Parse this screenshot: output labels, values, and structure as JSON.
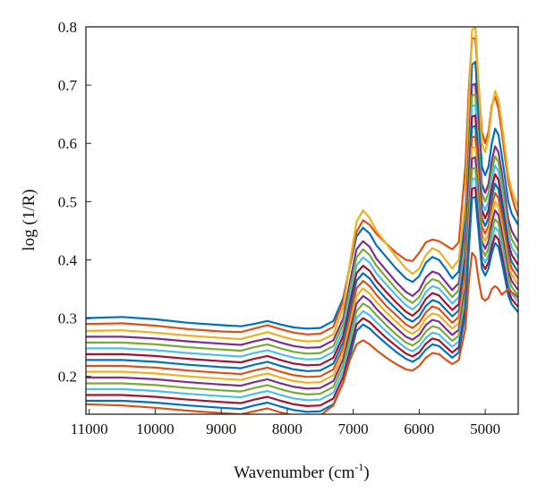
{
  "chart_data": {
    "type": "line",
    "xlabel_main": "Wavenumber (cm",
    "xlabel_sup": "-1",
    "xlabel_close": ")",
    "ylabel": "log (1/R)",
    "xlim": [
      11050,
      4500
    ],
    "ylim": [
      0.135,
      0.8
    ],
    "x_reversed": true,
    "grid": false,
    "legend": "none",
    "x_ticks": [
      {
        "value": 11000,
        "label": "11000"
      },
      {
        "value": 10000,
        "label": "10000"
      },
      {
        "value": 9000,
        "label": "9000"
      },
      {
        "value": 8000,
        "label": "8000"
      },
      {
        "value": 7000,
        "label": "7000"
      },
      {
        "value": 6000,
        "label": "6000"
      },
      {
        "value": 5000,
        "label": "5000"
      }
    ],
    "y_ticks": [
      {
        "value": 0.2,
        "label": "0.2"
      },
      {
        "value": 0.3,
        "label": "0.3"
      },
      {
        "value": 0.4,
        "label": "0.4"
      },
      {
        "value": 0.5,
        "label": "0.5"
      },
      {
        "value": 0.6,
        "label": "0.6"
      },
      {
        "value": 0.7,
        "label": "0.7"
      },
      {
        "value": 0.8,
        "label": "0.8"
      }
    ],
    "palette": [
      "#0072BD",
      "#D95319",
      "#EDB120",
      "#7E2F8E",
      "#77AC30",
      "#4DBEEE",
      "#A2142F"
    ],
    "x": [
      11050,
      10500,
      10000,
      9500,
      9000,
      8700,
      8500,
      8300,
      8100,
      7900,
      7700,
      7500,
      7300,
      7150,
      7050,
      6950,
      6850,
      6750,
      6650,
      6500,
      6350,
      6200,
      6100,
      6000,
      5900,
      5800,
      5700,
      5600,
      5500,
      5400,
      5300,
      5250,
      5200,
      5150,
      5100,
      5050,
      5000,
      4950,
      4900,
      4850,
      4800,
      4750,
      4700,
      4650,
      4600,
      4550,
      4500
    ],
    "series": [
      {
        "values": [
          0.3,
          0.302,
          0.298,
          0.292,
          0.288,
          0.286,
          0.29,
          0.295,
          0.289,
          0.284,
          0.282,
          0.283,
          0.295,
          0.335,
          0.39,
          0.44,
          0.455,
          0.445,
          0.425,
          0.405,
          0.385,
          0.368,
          0.362,
          0.372,
          0.395,
          0.405,
          0.4,
          0.385,
          0.368,
          0.38,
          0.47,
          0.61,
          0.735,
          0.74,
          0.65,
          0.56,
          0.545,
          0.56,
          0.6,
          0.625,
          0.615,
          0.58,
          0.54,
          0.5,
          0.48,
          0.47,
          0.46
        ]
      },
      {
        "values": [
          0.29,
          0.291,
          0.287,
          0.281,
          0.277,
          0.276,
          0.282,
          0.288,
          0.281,
          0.275,
          0.272,
          0.273,
          0.285,
          0.33,
          0.392,
          0.448,
          0.468,
          0.46,
          0.445,
          0.428,
          0.412,
          0.4,
          0.398,
          0.412,
          0.43,
          0.435,
          0.432,
          0.425,
          0.418,
          0.43,
          0.56,
          0.69,
          0.78,
          0.78,
          0.7,
          0.62,
          0.6,
          0.62,
          0.665,
          0.68,
          0.66,
          0.62,
          0.575,
          0.535,
          0.51,
          0.49,
          0.475
        ]
      },
      {
        "values": [
          0.278,
          0.279,
          0.275,
          0.27,
          0.266,
          0.264,
          0.27,
          0.276,
          0.269,
          0.263,
          0.26,
          0.261,
          0.272,
          0.318,
          0.395,
          0.465,
          0.485,
          0.472,
          0.45,
          0.428,
          0.405,
          0.385,
          0.376,
          0.385,
          0.408,
          0.42,
          0.415,
          0.4,
          0.385,
          0.4,
          0.5,
          0.66,
          0.795,
          0.8,
          0.7,
          0.6,
          0.585,
          0.61,
          0.66,
          0.69,
          0.675,
          0.635,
          0.59,
          0.545,
          0.52,
          0.505,
          0.49
        ]
      },
      {
        "values": [
          0.268,
          0.268,
          0.265,
          0.26,
          0.256,
          0.254,
          0.26,
          0.265,
          0.258,
          0.252,
          0.249,
          0.25,
          0.262,
          0.3,
          0.362,
          0.418,
          0.432,
          0.422,
          0.402,
          0.382,
          0.362,
          0.345,
          0.338,
          0.348,
          0.37,
          0.38,
          0.376,
          0.362,
          0.348,
          0.36,
          0.45,
          0.59,
          0.7,
          0.702,
          0.615,
          0.53,
          0.515,
          0.53,
          0.57,
          0.595,
          0.585,
          0.55,
          0.51,
          0.47,
          0.45,
          0.44,
          0.43
        ]
      },
      {
        "values": [
          0.258,
          0.258,
          0.255,
          0.25,
          0.246,
          0.244,
          0.25,
          0.255,
          0.248,
          0.242,
          0.239,
          0.24,
          0.252,
          0.29,
          0.35,
          0.404,
          0.418,
          0.408,
          0.39,
          0.37,
          0.35,
          0.333,
          0.326,
          0.336,
          0.357,
          0.367,
          0.363,
          0.35,
          0.336,
          0.348,
          0.435,
          0.572,
          0.682,
          0.684,
          0.598,
          0.515,
          0.5,
          0.515,
          0.553,
          0.578,
          0.568,
          0.534,
          0.495,
          0.456,
          0.436,
          0.426,
          0.416
        ]
      },
      {
        "values": [
          0.248,
          0.248,
          0.245,
          0.24,
          0.236,
          0.234,
          0.24,
          0.245,
          0.238,
          0.232,
          0.229,
          0.23,
          0.242,
          0.28,
          0.338,
          0.39,
          0.404,
          0.395,
          0.377,
          0.358,
          0.339,
          0.322,
          0.315,
          0.325,
          0.345,
          0.355,
          0.351,
          0.338,
          0.325,
          0.336,
          0.42,
          0.555,
          0.664,
          0.666,
          0.582,
          0.5,
          0.485,
          0.5,
          0.538,
          0.562,
          0.552,
          0.518,
          0.48,
          0.442,
          0.422,
          0.413,
          0.403
        ]
      },
      {
        "values": [
          0.238,
          0.238,
          0.235,
          0.23,
          0.226,
          0.224,
          0.23,
          0.235,
          0.228,
          0.222,
          0.219,
          0.22,
          0.232,
          0.27,
          0.326,
          0.377,
          0.39,
          0.381,
          0.364,
          0.345,
          0.327,
          0.311,
          0.304,
          0.314,
          0.333,
          0.343,
          0.339,
          0.326,
          0.314,
          0.324,
          0.406,
          0.538,
          0.646,
          0.648,
          0.566,
          0.486,
          0.471,
          0.486,
          0.523,
          0.547,
          0.537,
          0.503,
          0.466,
          0.429,
          0.409,
          0.4,
          0.391
        ]
      },
      {
        "values": [
          0.228,
          0.228,
          0.225,
          0.22,
          0.216,
          0.214,
          0.22,
          0.225,
          0.218,
          0.212,
          0.209,
          0.21,
          0.222,
          0.26,
          0.314,
          0.364,
          0.377,
          0.368,
          0.352,
          0.333,
          0.316,
          0.3,
          0.294,
          0.303,
          0.321,
          0.331,
          0.327,
          0.315,
          0.303,
          0.313,
          0.393,
          0.522,
          0.628,
          0.63,
          0.55,
          0.472,
          0.458,
          0.472,
          0.508,
          0.531,
          0.521,
          0.489,
          0.453,
          0.416,
          0.397,
          0.388,
          0.379
        ]
      },
      {
        "values": [
          0.218,
          0.218,
          0.215,
          0.21,
          0.206,
          0.204,
          0.21,
          0.215,
          0.208,
          0.202,
          0.199,
          0.2,
          0.212,
          0.25,
          0.302,
          0.351,
          0.364,
          0.355,
          0.34,
          0.321,
          0.305,
          0.289,
          0.283,
          0.292,
          0.31,
          0.32,
          0.316,
          0.304,
          0.292,
          0.302,
          0.38,
          0.506,
          0.61,
          0.612,
          0.535,
          0.458,
          0.445,
          0.458,
          0.493,
          0.515,
          0.506,
          0.475,
          0.44,
          0.404,
          0.386,
          0.377,
          0.368
        ]
      },
      {
        "values": [
          0.208,
          0.208,
          0.205,
          0.2,
          0.196,
          0.194,
          0.2,
          0.205,
          0.198,
          0.192,
          0.189,
          0.19,
          0.202,
          0.24,
          0.29,
          0.338,
          0.351,
          0.342,
          0.328,
          0.31,
          0.294,
          0.279,
          0.273,
          0.281,
          0.299,
          0.308,
          0.305,
          0.293,
          0.282,
          0.291,
          0.367,
          0.49,
          0.592,
          0.594,
          0.52,
          0.445,
          0.432,
          0.445,
          0.478,
          0.5,
          0.491,
          0.461,
          0.427,
          0.392,
          0.375,
          0.366,
          0.358
        ]
      },
      {
        "values": [
          0.198,
          0.198,
          0.195,
          0.19,
          0.186,
          0.184,
          0.19,
          0.195,
          0.188,
          0.182,
          0.179,
          0.18,
          0.192,
          0.23,
          0.278,
          0.325,
          0.338,
          0.33,
          0.316,
          0.299,
          0.283,
          0.268,
          0.263,
          0.271,
          0.288,
          0.297,
          0.294,
          0.282,
          0.271,
          0.28,
          0.354,
          0.474,
          0.574,
          0.576,
          0.505,
          0.432,
          0.419,
          0.432,
          0.464,
          0.485,
          0.477,
          0.448,
          0.415,
          0.381,
          0.364,
          0.356,
          0.348
        ]
      },
      {
        "values": [
          0.188,
          0.188,
          0.185,
          0.18,
          0.176,
          0.174,
          0.18,
          0.185,
          0.178,
          0.172,
          0.169,
          0.17,
          0.182,
          0.22,
          0.266,
          0.312,
          0.325,
          0.318,
          0.305,
          0.288,
          0.272,
          0.258,
          0.253,
          0.261,
          0.277,
          0.286,
          0.283,
          0.272,
          0.261,
          0.27,
          0.342,
          0.458,
          0.556,
          0.558,
          0.49,
          0.42,
          0.407,
          0.42,
          0.45,
          0.47,
          0.463,
          0.435,
          0.403,
          0.37,
          0.354,
          0.346,
          0.338
        ]
      },
      {
        "values": [
          0.178,
          0.178,
          0.175,
          0.17,
          0.166,
          0.164,
          0.17,
          0.175,
          0.168,
          0.162,
          0.159,
          0.16,
          0.172,
          0.21,
          0.254,
          0.3,
          0.312,
          0.305,
          0.293,
          0.277,
          0.262,
          0.248,
          0.243,
          0.251,
          0.266,
          0.275,
          0.272,
          0.261,
          0.251,
          0.26,
          0.33,
          0.442,
          0.538,
          0.54,
          0.475,
          0.408,
          0.395,
          0.408,
          0.436,
          0.456,
          0.449,
          0.422,
          0.391,
          0.359,
          0.343,
          0.335,
          0.328
        ]
      },
      {
        "values": [
          0.168,
          0.168,
          0.165,
          0.16,
          0.156,
          0.154,
          0.16,
          0.165,
          0.158,
          0.152,
          0.149,
          0.15,
          0.162,
          0.2,
          0.244,
          0.289,
          0.3,
          0.293,
          0.282,
          0.266,
          0.252,
          0.239,
          0.234,
          0.241,
          0.256,
          0.265,
          0.262,
          0.251,
          0.241,
          0.25,
          0.318,
          0.428,
          0.522,
          0.524,
          0.461,
          0.396,
          0.384,
          0.396,
          0.423,
          0.442,
          0.435,
          0.409,
          0.379,
          0.349,
          0.333,
          0.326,
          0.319
        ]
      },
      {
        "values": [
          0.158,
          0.158,
          0.155,
          0.15,
          0.146,
          0.144,
          0.15,
          0.155,
          0.148,
          0.142,
          0.139,
          0.14,
          0.152,
          0.19,
          0.234,
          0.278,
          0.289,
          0.282,
          0.271,
          0.256,
          0.242,
          0.23,
          0.225,
          0.232,
          0.246,
          0.255,
          0.252,
          0.242,
          0.232,
          0.241,
          0.307,
          0.414,
          0.506,
          0.508,
          0.447,
          0.385,
          0.373,
          0.385,
          0.411,
          0.429,
          0.422,
          0.397,
          0.368,
          0.339,
          0.324,
          0.317,
          0.31
        ]
      },
      {
        "values": [
          0.152,
          0.15,
          0.146,
          0.141,
          0.137,
          0.135,
          0.14,
          0.145,
          0.138,
          0.133,
          0.131,
          0.133,
          0.15,
          0.19,
          0.228,
          0.255,
          0.262,
          0.255,
          0.245,
          0.232,
          0.221,
          0.212,
          0.21,
          0.218,
          0.232,
          0.24,
          0.238,
          0.229,
          0.221,
          0.228,
          0.282,
          0.36,
          0.412,
          0.405,
          0.365,
          0.335,
          0.33,
          0.335,
          0.35,
          0.355,
          0.35,
          0.34,
          0.345,
          0.35,
          0.345,
          0.34,
          0.335
        ]
      }
    ]
  }
}
